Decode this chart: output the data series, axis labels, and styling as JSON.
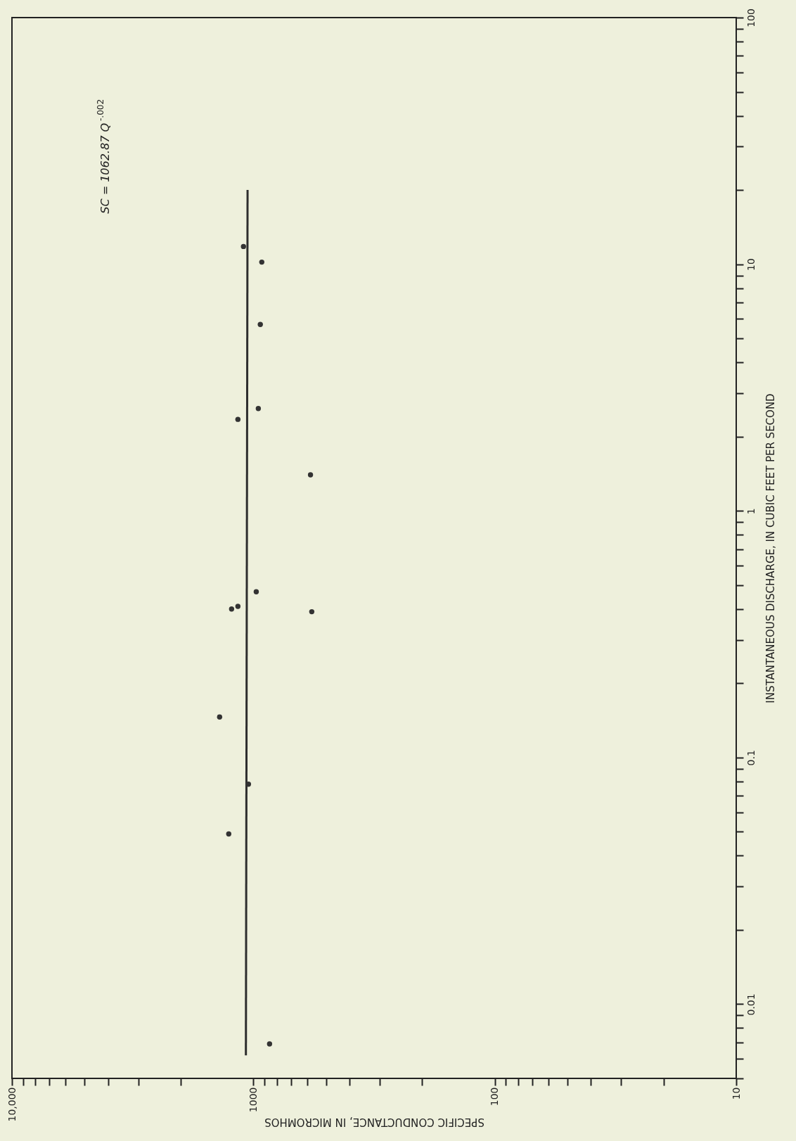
{
  "chart_data": {
    "type": "scatter",
    "orientation": "horizontal",
    "log": "xy",
    "grid": false,
    "marker": "circle",
    "xlabel": "SPECIFIC CONDUCTANCE, IN MICROMHOS",
    "ylabel": "INSTANTANEOUS DISCHARGE, IN CUBIC FEET PER SECOND",
    "annotations": [
      "SC = 1062.87 Q$^{-.002}$"
    ],
    "xlim": [
      10000,
      10
    ],
    "ylim": [
      0.005,
      100
    ],
    "xticks": [
      {
        "value": 10000,
        "label": "10,000"
      },
      {
        "value": 9000,
        "label": null
      },
      {
        "value": 8000,
        "label": null
      },
      {
        "value": 7000,
        "label": null
      },
      {
        "value": 6000,
        "label": null
      },
      {
        "value": 5000,
        "label": null
      },
      {
        "value": 4000,
        "label": null
      },
      {
        "value": 3000,
        "label": null
      },
      {
        "value": 2000,
        "label": null
      },
      1000,
      {
        "value": 900,
        "label": null
      },
      {
        "value": 800,
        "label": null
      },
      {
        "value": 700,
        "label": null
      },
      {
        "value": 600,
        "label": null
      },
      {
        "value": 500,
        "label": null
      },
      {
        "value": 400,
        "label": null
      },
      {
        "value": 300,
        "label": null
      },
      {
        "value": 200,
        "label": null
      },
      100,
      {
        "value": 90,
        "label": null
      },
      {
        "value": 80,
        "label": null
      },
      {
        "value": 70,
        "label": null
      },
      {
        "value": 60,
        "label": null
      },
      {
        "value": 50,
        "label": null
      },
      {
        "value": 40,
        "label": null
      },
      {
        "value": 30,
        "label": null
      },
      {
        "value": 20,
        "label": null
      },
      10
    ],
    "yticks": [
      {
        "value": 0.005,
        "label": null
      },
      {
        "value": 0.006,
        "label": null
      },
      {
        "value": 0.007,
        "label": null
      },
      {
        "value": 0.008,
        "label": null
      },
      {
        "value": 0.009,
        "label": null
      },
      0.01,
      {
        "value": 0.02,
        "label": null
      },
      {
        "value": 0.03,
        "label": null
      },
      {
        "value": 0.04,
        "label": null
      },
      {
        "value": 0.05,
        "label": null
      },
      {
        "value": 0.06,
        "label": null
      },
      {
        "value": 0.07,
        "label": null
      },
      {
        "value": 0.08,
        "label": null
      },
      {
        "value": 0.09,
        "label": null
      },
      0.1,
      {
        "value": 0.2,
        "label": null
      },
      {
        "value": 0.3,
        "label": null
      },
      {
        "value": 0.4,
        "label": null
      },
      {
        "value": 0.5,
        "label": null
      },
      {
        "value": 0.6,
        "label": null
      },
      {
        "value": 0.7,
        "label": null
      },
      {
        "value": 0.8,
        "label": null
      },
      {
        "value": 0.9,
        "label": null
      },
      1,
      {
        "value": 2,
        "label": null
      },
      {
        "value": 3,
        "label": null
      },
      {
        "value": 4,
        "label": null
      },
      {
        "value": 5,
        "label": null
      },
      {
        "value": 6,
        "label": null
      },
      {
        "value": 7,
        "label": null
      },
      {
        "value": 8,
        "label": null
      },
      {
        "value": 9,
        "label": null
      },
      10,
      {
        "value": 20,
        "label": null
      },
      {
        "value": 30,
        "label": null
      },
      {
        "value": 40,
        "label": null
      },
      {
        "value": 50,
        "label": null
      },
      {
        "value": 60,
        "label": null
      },
      {
        "value": 70,
        "label": null
      },
      {
        "value": 80,
        "label": null
      },
      {
        "value": 90,
        "label": null
      },
      100
    ],
    "series": [
      {
        "type": "line",
        "marker": "none",
        "line_style": "solid",
        "color": "#2e2e2e",
        "x": [
          0.0062,
          20
        ],
        "values": [
          1074,
          1057
        ]
      },
      {
        "color": "#333333",
        "x": [
          11.8,
          10.2,
          5.7,
          2.6,
          2.35,
          1.4,
          0.47,
          0.41,
          0.4,
          0.39,
          0.146,
          0.078,
          0.049,
          0.0069
        ],
        "values": [
          1099,
          923,
          936,
          954,
          1159,
          580,
          973,
          1159,
          1231,
          573,
          1380,
          1048,
          1265,
          857
        ]
      }
    ]
  }
}
